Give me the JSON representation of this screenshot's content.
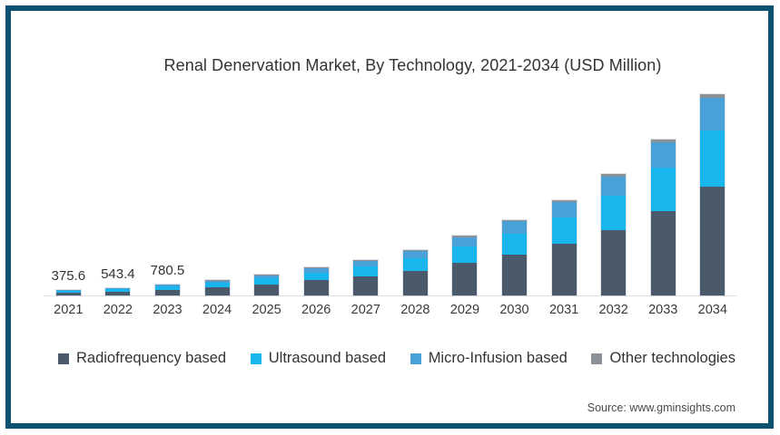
{
  "title": "Renal Denervation Market, By Technology, 2021-2034 (USD Million)",
  "source": "Source: www.gminsights.com",
  "frame": {
    "border_color": "#0e5272",
    "background": "#ffffff"
  },
  "colors": {
    "radiofrequency": "#4a5a6b",
    "ultrasound": "#18b6ec",
    "micro_infusion": "#4aa1d8",
    "other": "#8b9197",
    "text": "#333333",
    "axis_line": "#e2e2e2"
  },
  "chart_data": {
    "type": "bar",
    "stacked": true,
    "grid": false,
    "legend_position": "bottom",
    "xlabel": "",
    "ylabel": "",
    "y_axis_shown": false,
    "ylim": [
      0,
      14500
    ],
    "categories": [
      "2021",
      "2022",
      "2023",
      "2024",
      "2025",
      "2026",
      "2027",
      "2028",
      "2029",
      "2030",
      "2031",
      "2032",
      "2033",
      "2034"
    ],
    "series": [
      {
        "name": "Radiofrequency based",
        "color": "#4a5a6b",
        "values": [
          202.8,
          293.4,
          421.5,
          594,
          810,
          1080,
          1377,
          1782,
          2322,
          2943,
          3699,
          4725,
          6075,
          7830
        ]
      },
      {
        "name": "Ultrasound based",
        "color": "#18b6ec",
        "values": [
          105.2,
          152.2,
          218.5,
          308,
          420,
          560,
          714,
          924,
          1204,
          1526,
          1918,
          2450,
          3150,
          4060
        ]
      },
      {
        "name": "Micro-Infusion based",
        "color": "#4aa1d8",
        "values": [
          60.1,
          86.9,
          124.9,
          176,
          240,
          320,
          408,
          528,
          688,
          872,
          1096,
          1400,
          1800,
          2320
        ]
      },
      {
        "name": "Other technologies",
        "color": "#8b9197",
        "values": [
          7.5,
          10.9,
          15.6,
          22,
          30,
          40,
          51,
          66,
          86,
          109,
          137,
          175,
          225,
          290
        ]
      }
    ],
    "totals": [
      375.6,
      543.4,
      780.5,
      1100,
      1500,
      2000,
      2550,
      3300,
      4300,
      5450,
      6850,
      8750,
      11250,
      14500
    ],
    "data_labels": [
      "375.6",
      "543.4",
      "780.5",
      "",
      "",
      "",
      "",
      "",
      "",
      "",
      "",
      "",
      "",
      ""
    ]
  }
}
